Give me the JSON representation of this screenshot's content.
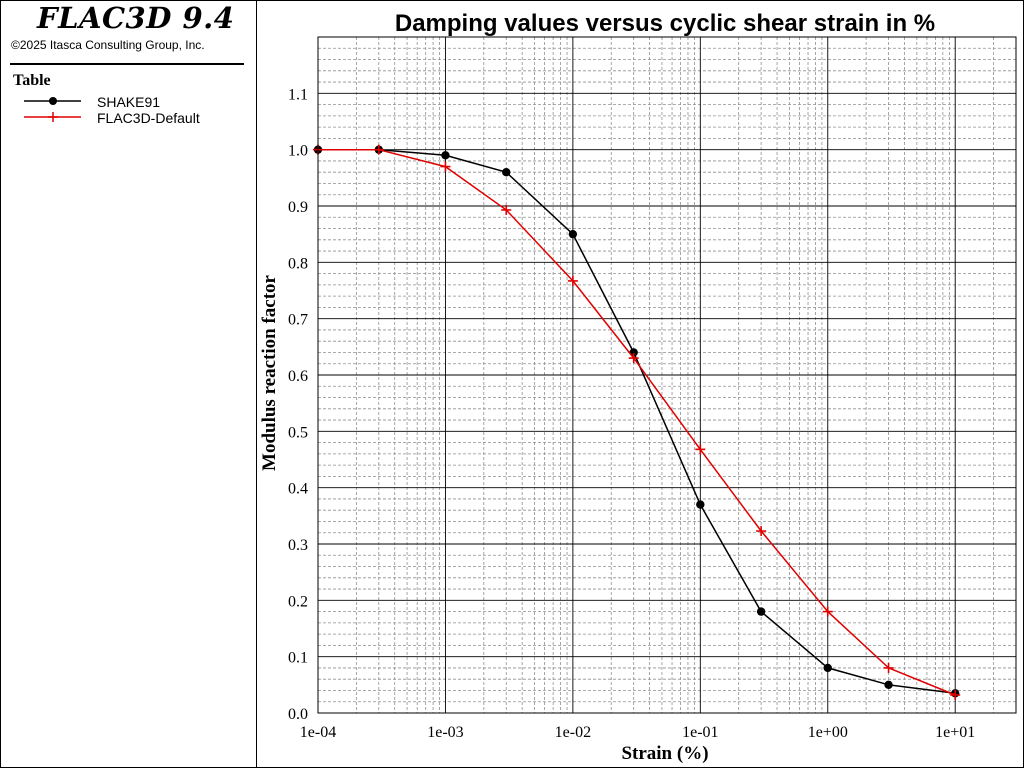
{
  "app": {
    "title": "FLAC3D 9.4",
    "copyright": "©2025 Itasca Consulting Group, Inc."
  },
  "legend": {
    "title": "Table",
    "items": [
      {
        "label": "SHAKE91",
        "color": "#000000",
        "marker": "circle"
      },
      {
        "label": "FLAC3D-Default",
        "color": "#e00000",
        "marker": "plus"
      }
    ]
  },
  "chart_data": {
    "type": "line",
    "title": "Damping values versus cyclic shear strain in %",
    "xlabel": "Strain (%)",
    "ylabel": "Modulus reaction factor",
    "xscale": "log",
    "xlim": [
      0.0001,
      30
    ],
    "ylim": [
      0,
      1.2
    ],
    "xticks": [
      0.0001,
      0.001,
      0.01,
      0.1,
      1,
      10
    ],
    "xtick_labels": [
      "1e-04",
      "1e-03",
      "1e-02",
      "1e-01",
      "1e+00",
      "1e+01"
    ],
    "yticks": [
      0.0,
      0.1,
      0.2,
      0.3,
      0.4,
      0.5,
      0.6,
      0.7,
      0.8,
      0.9,
      1.0,
      1.1
    ],
    "ytick_labels": [
      "0.0",
      "0.1",
      "0.2",
      "0.3",
      "0.4",
      "0.5",
      "0.6",
      "0.7",
      "0.8",
      "0.9",
      "1.0",
      "1.1"
    ],
    "grid": true,
    "legend_position": "left panel",
    "series": [
      {
        "name": "SHAKE91",
        "color": "#000000",
        "marker": "circle",
        "x": [
          0.0001,
          0.0003,
          0.001,
          0.003,
          0.01,
          0.03,
          0.1,
          0.3,
          1,
          3,
          10
        ],
        "y": [
          1.0,
          1.0,
          0.99,
          0.96,
          0.85,
          0.64,
          0.37,
          0.18,
          0.08,
          0.05,
          0.035
        ]
      },
      {
        "name": "FLAC3D-Default",
        "color": "#e00000",
        "marker": "plus",
        "x": [
          0.0001,
          0.0003,
          0.001,
          0.003,
          0.01,
          0.03,
          0.1,
          0.3,
          1,
          3,
          10
        ],
        "y": [
          1.0,
          1.0,
          0.97,
          0.893,
          0.767,
          0.63,
          0.468,
          0.323,
          0.18,
          0.08,
          0.032
        ]
      }
    ]
  }
}
